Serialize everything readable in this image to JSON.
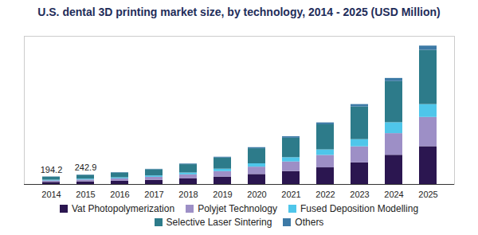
{
  "chart_data": {
    "type": "bar",
    "stacked": true,
    "title": "U.S. dental 3D printing market size, by technology, 2014 - 2025 (USD Million)",
    "categories": [
      "2014",
      "2015",
      "2016",
      "2017",
      "2018",
      "2019",
      "2020",
      "2021",
      "2022",
      "2023",
      "2024",
      "2025"
    ],
    "series": [
      {
        "name": "Vat Photopolymerization",
        "color": "#2b1650",
        "values": [
          55,
          68,
          84,
          107,
          144,
          191,
          257,
          333,
          428,
          555,
          750,
          970
        ]
      },
      {
        "name": "Polyjet Technology",
        "color": "#9d8fc6",
        "values": [
          38,
          48,
          61,
          78,
          105,
          140,
          189,
          245,
          318,
          412,
          555,
          750
        ]
      },
      {
        "name": "Fused Deposition Modelling",
        "color": "#4fc6ea",
        "values": [
          18,
          22,
          27,
          35,
          47,
          63,
          85,
          110,
          142,
          184,
          280,
          330
        ]
      },
      {
        "name": "Selective Laser Sintering",
        "color": "#2d7b8a",
        "values": [
          77,
          97,
          124,
          158,
          213,
          285,
          386,
          500,
          645,
          838,
          1055,
          1390
        ]
      },
      {
        "name": "Others",
        "color": "#3d7aa6",
        "values": [
          6.2,
          7.9,
          9,
          12,
          16,
          21,
          28,
          37,
          47,
          61,
          80,
          110
        ]
      }
    ],
    "annotations": [
      {
        "category": "2014",
        "value": 194.2
      },
      {
        "category": "2015",
        "value": 242.9
      }
    ],
    "ylim": [
      0,
      3800
    ],
    "tick_labels": "x",
    "grid": false,
    "legend": "bottom"
  }
}
